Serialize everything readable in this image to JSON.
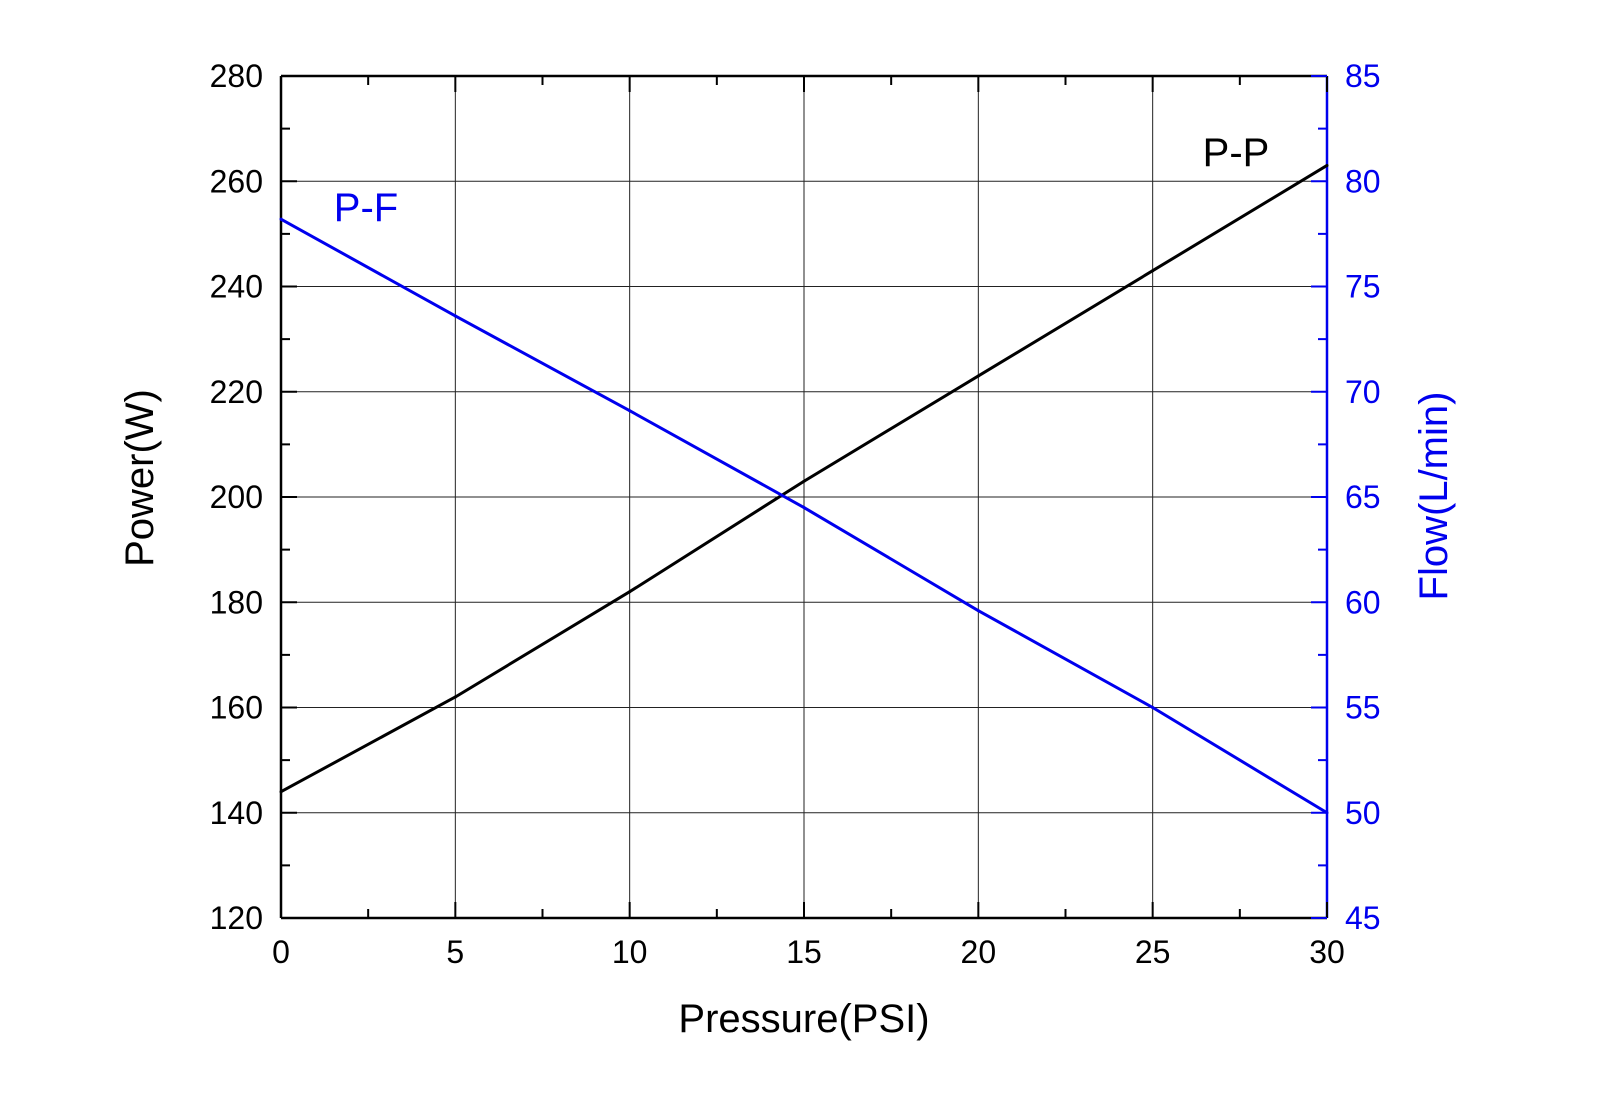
{
  "chart_data": {
    "type": "line",
    "xlabel": "Pressure(PSI)",
    "ylabel_left": "Power(W)",
    "ylabel_right": "Flow(L/min)",
    "xlim": [
      0,
      30
    ],
    "ylim_left": [
      120,
      280
    ],
    "ylim_right": [
      45,
      85
    ],
    "x_ticks": [
      0,
      5,
      10,
      15,
      20,
      25,
      30
    ],
    "y_ticks_left": [
      120,
      140,
      160,
      180,
      200,
      220,
      240,
      260,
      280
    ],
    "y_ticks_right": [
      45,
      50,
      55,
      60,
      65,
      70,
      75,
      80,
      85
    ],
    "grid": true,
    "series": [
      {
        "name": "P-P",
        "axis": "left",
        "color": "#000000",
        "x": [
          0,
          5,
          10,
          15,
          20,
          25,
          30
        ],
        "y": [
          144,
          162,
          182,
          203,
          223,
          243,
          263
        ]
      },
      {
        "name": "P-F",
        "axis": "right",
        "color": "#0000ee",
        "x": [
          0,
          5,
          10,
          15,
          20,
          25,
          30
        ],
        "y": [
          78.2,
          73.6,
          69.1,
          64.5,
          59.6,
          55.0,
          50.0
        ]
      }
    ]
  }
}
